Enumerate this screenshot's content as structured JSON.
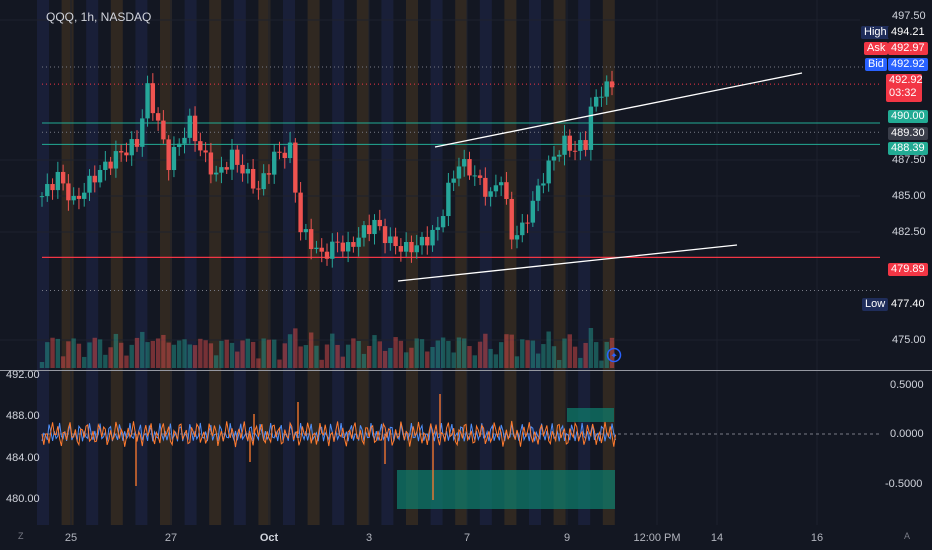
{
  "symbol": "QQQ, 1h, NASDAQ",
  "colors": {
    "background": "#131722",
    "up": "#26a69a",
    "down": "#ef5350",
    "teal_line": "#22ab94",
    "red_line": "#f23645",
    "trend_line": "#ffffff",
    "osc_orange": "#ff7b2e",
    "osc_blue": "#4f8ff7",
    "session_orange": "#3b2f22",
    "session_blue": "#1c2340"
  },
  "price_axis": {
    "ticks": [
      "497.50",
      "487.50",
      "485.00",
      "482.50",
      "475.00"
    ],
    "ylim": [
      472.7,
      498.5
    ]
  },
  "price_tags": {
    "high": {
      "label": "High",
      "value": "494.21"
    },
    "ask": {
      "label": "Ask",
      "value": "492.97"
    },
    "bid": {
      "label": "Bid",
      "value": "492.92"
    },
    "last": {
      "value": "492.92",
      "countdown": "03:32"
    },
    "level_490": "490.00",
    "level_489": "489.30",
    "level_488": "488.39",
    "level_479": "479.89",
    "low": {
      "label": "Low",
      "value": "477.40"
    }
  },
  "indicator_axis_left": [
    "492.00",
    "488.00",
    "484.00",
    "480.00"
  ],
  "indicator_axis_right": [
    "0.5000",
    "0.0000",
    "-0.5000"
  ],
  "time_axis": [
    "25",
    "27",
    "Oct",
    "3",
    "7",
    "9",
    "12:00 PM",
    "14",
    "16"
  ],
  "corner_icons": {
    "left": "Z",
    "right": "A"
  },
  "chart_data": {
    "type": "candlestick",
    "title": "QQQ, 1h, NASDAQ",
    "ylim": [
      472.7,
      498.5
    ],
    "x_labels": [
      "25",
      "27",
      "Oct",
      "3",
      "7",
      "9"
    ],
    "close_anchors": [
      [
        0,
        484.5
      ],
      [
        3,
        486.0
      ],
      [
        6,
        484.0
      ],
      [
        10,
        486.0
      ],
      [
        14,
        487.5
      ],
      [
        18,
        488.5
      ],
      [
        20,
        492.5
      ],
      [
        22,
        490.0
      ],
      [
        24,
        487.0
      ],
      [
        26,
        488.5
      ],
      [
        28,
        490.0
      ],
      [
        30,
        488.0
      ],
      [
        33,
        486.0
      ],
      [
        36,
        487.5
      ],
      [
        39,
        486.0
      ],
      [
        41,
        485.0
      ],
      [
        44,
        487.5
      ],
      [
        47,
        488.0
      ],
      [
        49,
        482.0
      ],
      [
        51,
        481.0
      ],
      [
        53,
        480.0
      ],
      [
        56,
        481.0
      ],
      [
        58,
        480.5
      ],
      [
        60,
        481.5
      ],
      [
        63,
        482.5
      ],
      [
        66,
        481.0
      ],
      [
        69,
        480.5
      ],
      [
        72,
        481.0
      ],
      [
        75,
        482.0
      ],
      [
        77,
        485.0
      ],
      [
        79,
        487.0
      ],
      [
        81,
        486.5
      ],
      [
        83,
        485.5
      ],
      [
        85,
        484.5
      ],
      [
        87,
        486.0
      ],
      [
        89,
        481.5
      ],
      [
        91,
        482.0
      ],
      [
        93,
        484.0
      ],
      [
        95,
        486.0
      ],
      [
        97,
        487.5
      ],
      [
        99,
        488.5
      ],
      [
        101,
        488.0
      ],
      [
        103,
        488.5
      ],
      [
        104,
        491.0
      ],
      [
        106,
        492.5
      ],
      [
        108,
        492.8
      ]
    ],
    "key_levels": [
      490.0,
      489.3,
      488.39,
      479.89
    ],
    "high": 494.21,
    "low": 477.4,
    "last": 492.92
  }
}
